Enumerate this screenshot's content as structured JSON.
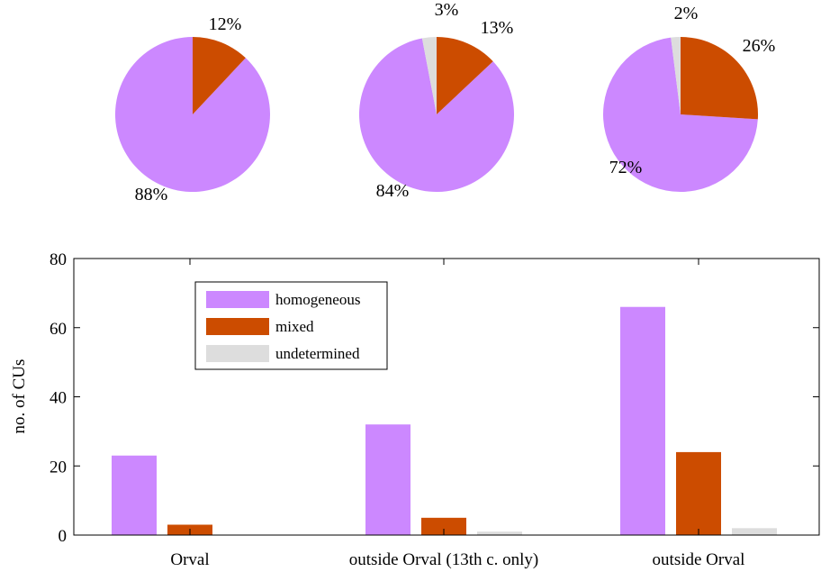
{
  "colors": {
    "homogeneous": "#cc88ff",
    "mixed": "#cc4c00",
    "undetermined": "#dddddd"
  },
  "chart_data": [
    {
      "type": "pie",
      "categories": [
        "homogeneous",
        "mixed",
        "undetermined"
      ],
      "values": [
        88,
        12,
        0
      ],
      "labels": [
        "88%",
        "12%",
        ""
      ]
    },
    {
      "type": "pie",
      "categories": [
        "homogeneous",
        "mixed",
        "undetermined"
      ],
      "values": [
        84,
        13,
        3
      ],
      "labels": [
        "84%",
        "13%",
        "3%"
      ]
    },
    {
      "type": "pie",
      "categories": [
        "homogeneous",
        "mixed",
        "undetermined"
      ],
      "values": [
        72,
        26,
        2
      ],
      "labels": [
        "72%",
        "26%",
        "2%"
      ]
    },
    {
      "type": "bar",
      "categories": [
        "Orval",
        "outside Orval (13th c. only)",
        "outside Orval"
      ],
      "series": [
        {
          "name": "homogeneous",
          "values": [
            23,
            32,
            66
          ]
        },
        {
          "name": "mixed",
          "values": [
            3,
            5,
            24
          ]
        },
        {
          "name": "undetermined",
          "values": [
            0,
            1,
            2
          ]
        }
      ],
      "ylabel": "no. of CUs",
      "xlabel": "",
      "ylim": [
        0,
        80
      ],
      "yticks": [
        0,
        20,
        40,
        60,
        80
      ],
      "legend": "top-left"
    }
  ]
}
